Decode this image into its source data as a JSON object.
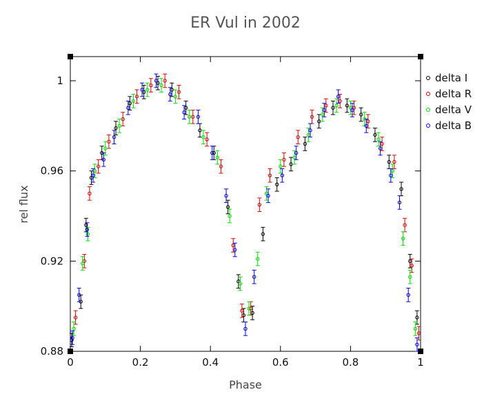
{
  "chart_data": {
    "type": "scatter",
    "title": "ER Vul in 2002",
    "xlabel": "Phase",
    "ylabel": "rel flux",
    "xlim": [
      0,
      1
    ],
    "ylim": [
      0.88,
      1.01
    ],
    "x_ticks": [
      0,
      0.2,
      0.4,
      0.6,
      0.8,
      1
    ],
    "x_tick_labels": [
      "0",
      "0.2",
      "0.4",
      "0.6",
      "0.8",
      "1"
    ],
    "y_ticks": [
      0.88,
      0.92,
      0.96,
      1.0
    ],
    "y_tick_labels": [
      "0.88",
      "0.92",
      "0.96",
      "1"
    ],
    "grid": false,
    "error_bars": true,
    "legend_position": "right-top",
    "series": [
      {
        "name": "delta I",
        "color": "#000000",
        "x": [
          0.004,
          0.03,
          0.045,
          0.06,
          0.09,
          0.13,
          0.17,
          0.21,
          0.25,
          0.29,
          0.33,
          0.37,
          0.41,
          0.45,
          0.48,
          0.495,
          0.52,
          0.55,
          0.59,
          0.63,
          0.67,
          0.71,
          0.75,
          0.79,
          0.83,
          0.87,
          0.91,
          0.945,
          0.97,
          0.99
        ],
        "y": [
          0.885,
          0.902,
          0.936,
          0.957,
          0.968,
          0.979,
          0.99,
          0.995,
          0.999,
          0.996,
          0.988,
          0.978,
          0.968,
          0.944,
          0.911,
          0.896,
          0.897,
          0.932,
          0.954,
          0.963,
          0.972,
          0.982,
          0.988,
          0.989,
          0.985,
          0.976,
          0.964,
          0.952,
          0.92,
          0.895
        ],
        "err": 0.003
      },
      {
        "name": "delta R",
        "color": "#dd0000",
        "x": [
          0.015,
          0.04,
          0.055,
          0.08,
          0.11,
          0.15,
          0.19,
          0.23,
          0.27,
          0.31,
          0.35,
          0.39,
          0.43,
          0.465,
          0.49,
          0.515,
          0.54,
          0.57,
          0.61,
          0.65,
          0.69,
          0.73,
          0.77,
          0.81,
          0.85,
          0.89,
          0.925,
          0.955,
          0.975,
          0.995
        ],
        "y": [
          0.895,
          0.92,
          0.95,
          0.962,
          0.973,
          0.983,
          0.993,
          0.998,
          1.0,
          0.995,
          0.984,
          0.974,
          0.962,
          0.927,
          0.898,
          0.899,
          0.945,
          0.958,
          0.965,
          0.975,
          0.984,
          0.989,
          0.991,
          0.988,
          0.982,
          0.972,
          0.964,
          0.936,
          0.918,
          0.888
        ],
        "err": 0.003
      },
      {
        "name": "delta V",
        "color": "#00dd00",
        "x": [
          0.01,
          0.035,
          0.05,
          0.07,
          0.1,
          0.14,
          0.18,
          0.22,
          0.26,
          0.3,
          0.34,
          0.38,
          0.42,
          0.455,
          0.485,
          0.51,
          0.535,
          0.56,
          0.6,
          0.64,
          0.68,
          0.72,
          0.76,
          0.8,
          0.84,
          0.88,
          0.92,
          0.95,
          0.97,
          0.985
        ],
        "y": [
          0.89,
          0.919,
          0.932,
          0.96,
          0.97,
          0.98,
          0.991,
          0.996,
          0.998,
          0.993,
          0.984,
          0.975,
          0.966,
          0.94,
          0.91,
          0.899,
          0.921,
          0.95,
          0.962,
          0.966,
          0.976,
          0.985,
          0.989,
          0.988,
          0.983,
          0.974,
          0.96,
          0.93,
          0.913,
          0.89
        ],
        "err": 0.003
      },
      {
        "name": "delta B",
        "color": "#0000ee",
        "x": [
          0.006,
          0.025,
          0.048,
          0.065,
          0.095,
          0.125,
          0.165,
          0.205,
          0.245,
          0.285,
          0.325,
          0.365,
          0.405,
          0.445,
          0.47,
          0.5,
          0.525,
          0.565,
          0.605,
          0.645,
          0.685,
          0.725,
          0.765,
          0.805,
          0.845,
          0.885,
          0.915,
          0.94,
          0.965,
          0.99
        ],
        "y": [
          0.886,
          0.905,
          0.934,
          0.958,
          0.965,
          0.975,
          0.988,
          0.996,
          1.0,
          0.994,
          0.986,
          0.984,
          0.968,
          0.949,
          0.925,
          0.89,
          0.913,
          0.949,
          0.958,
          0.968,
          0.978,
          0.987,
          0.993,
          0.987,
          0.98,
          0.97,
          0.958,
          0.946,
          0.905,
          0.883
        ],
        "err": 0.003
      }
    ]
  }
}
